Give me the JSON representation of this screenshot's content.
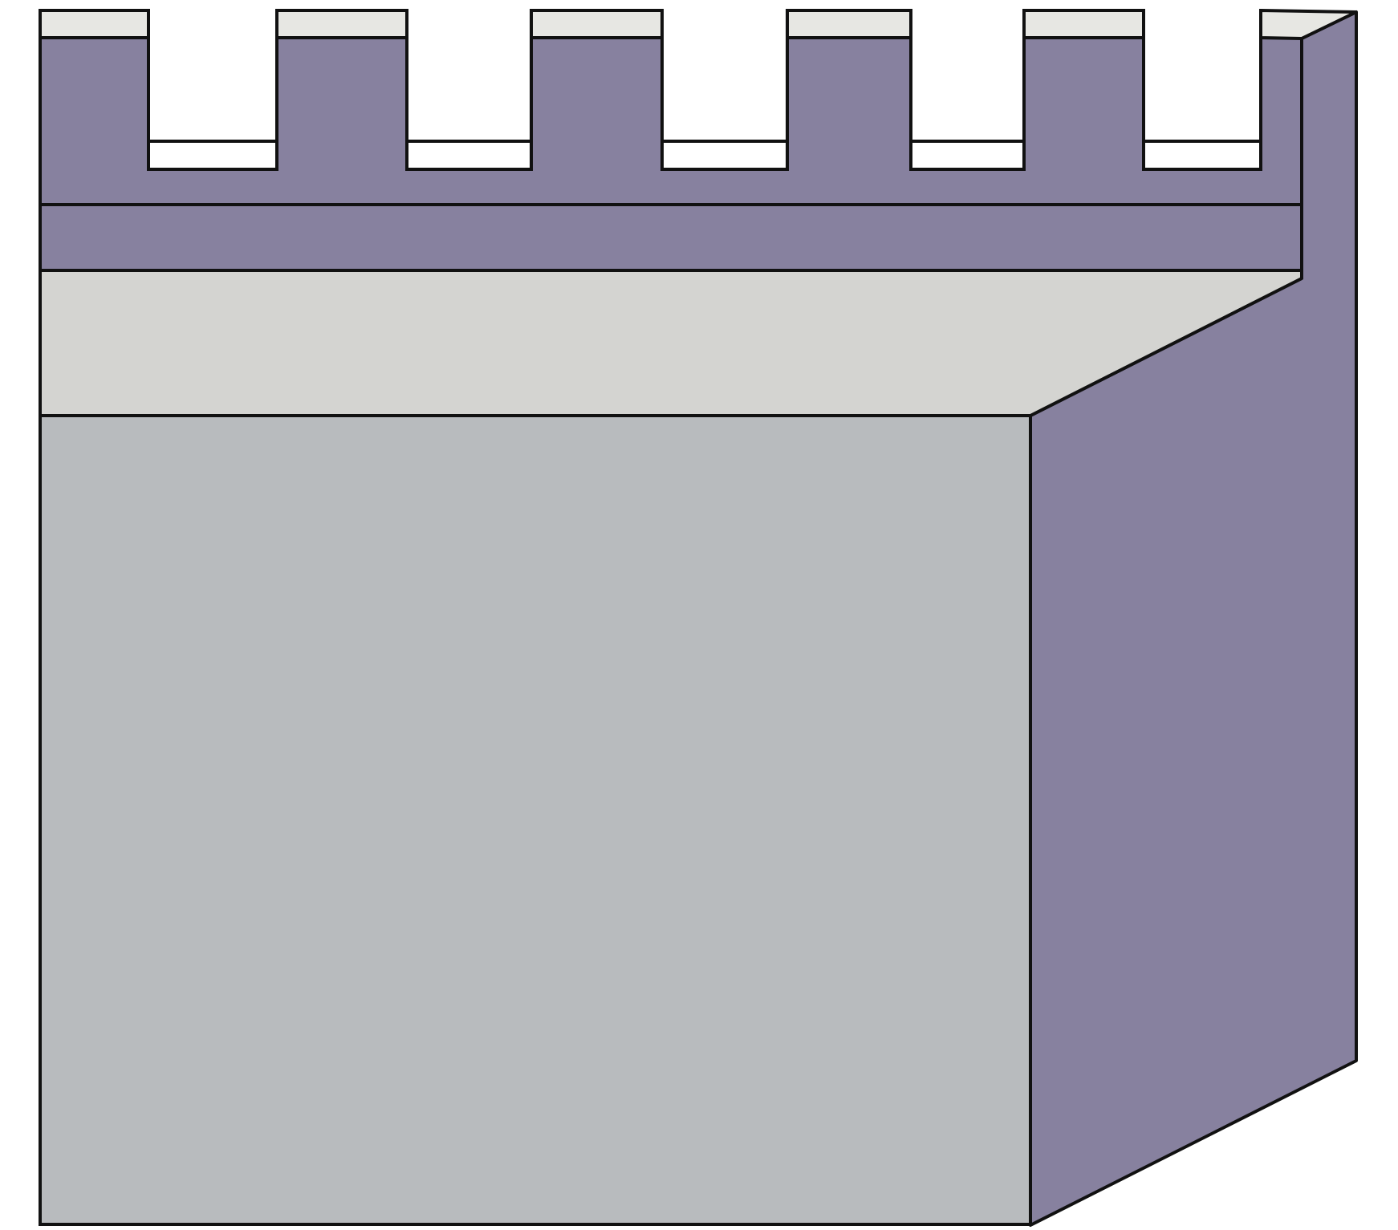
{
  "colors": {
    "background": "#ffffff",
    "wall_purple": "#87819f",
    "wall_front": "#b8bbbe",
    "ledge_top": "#d4d4d1",
    "merlon_cap": "#e7e7e3",
    "outline": "#111111"
  },
  "battlement": {
    "merlon_count": 6,
    "crenel_count": 5
  }
}
